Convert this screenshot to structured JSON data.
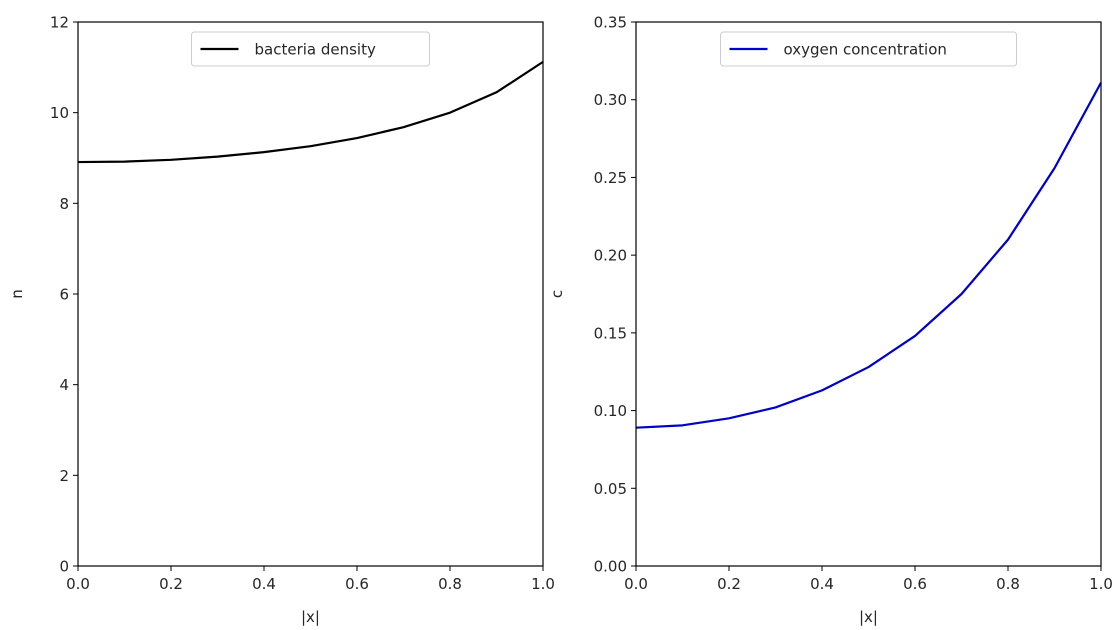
{
  "chart_data": [
    {
      "type": "line",
      "title": "",
      "xlabel": "|x|",
      "ylabel": "n",
      "xlim": [
        0.0,
        1.0
      ],
      "ylim": [
        0,
        12
      ],
      "xticks": [
        "0.0",
        "0.2",
        "0.4",
        "0.6",
        "0.8",
        "1.0"
      ],
      "yticks": [
        "0",
        "2",
        "4",
        "6",
        "8",
        "10",
        "12"
      ],
      "grid": false,
      "legend_position": "upper center",
      "series": [
        {
          "name": "bacteria density",
          "color": "#000000",
          "x": [
            0.0,
            0.1,
            0.2,
            0.3,
            0.4,
            0.5,
            0.6,
            0.7,
            0.8,
            0.9,
            1.0
          ],
          "y": [
            8.91,
            8.92,
            8.96,
            9.03,
            9.13,
            9.26,
            9.44,
            9.68,
            10.0,
            10.45,
            11.12
          ]
        }
      ]
    },
    {
      "type": "line",
      "title": "",
      "xlabel": "|x|",
      "ylabel": "c",
      "xlim": [
        0.0,
        1.0
      ],
      "ylim": [
        0.0,
        0.35
      ],
      "xticks": [
        "0.0",
        "0.2",
        "0.4",
        "0.6",
        "0.8",
        "1.0"
      ],
      "yticks": [
        "0.00",
        "0.05",
        "0.10",
        "0.15",
        "0.20",
        "0.25",
        "0.30",
        "0.35"
      ],
      "grid": false,
      "legend_position": "upper center",
      "series": [
        {
          "name": "oxygen concentration",
          "color": "#0000cc",
          "x": [
            0.0,
            0.1,
            0.2,
            0.3,
            0.4,
            0.5,
            0.6,
            0.7,
            0.8,
            0.9,
            1.0
          ],
          "y": [
            0.089,
            0.0905,
            0.095,
            0.102,
            0.113,
            0.128,
            0.148,
            0.175,
            0.21,
            0.256,
            0.311
          ]
        }
      ]
    }
  ]
}
